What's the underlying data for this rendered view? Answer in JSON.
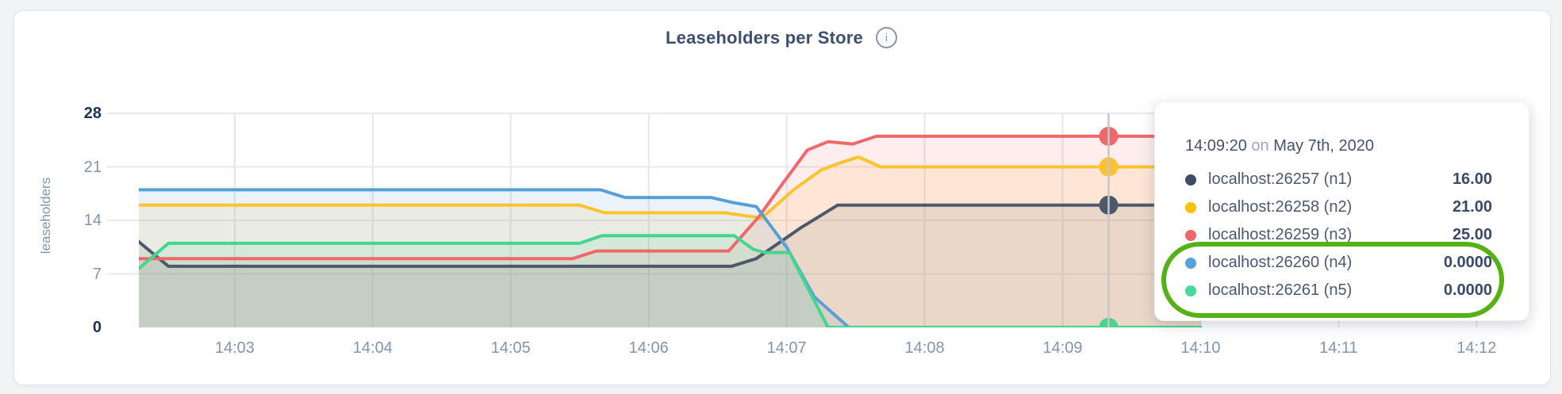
{
  "header": {
    "title": "Leaseholders per Store",
    "info_icon_glyph": "i"
  },
  "chart_data": {
    "type": "area",
    "title": "Leaseholders per Store",
    "xlabel": "",
    "ylabel": "leaseholders",
    "x_domain": [
      2.305,
      12.28
    ],
    "y_domain": [
      0,
      28
    ],
    "grid": true,
    "grid_color_vertical": "#e3e6ea",
    "grid_color_horizontal": "#e9e9ed",
    "x_ticks": [
      {
        "t": 3,
        "label": "14:03"
      },
      {
        "t": 4,
        "label": "14:04"
      },
      {
        "t": 5,
        "label": "14:05"
      },
      {
        "t": 6,
        "label": "14:06"
      },
      {
        "t": 7,
        "label": "14:07"
      },
      {
        "t": 8,
        "label": "14:08"
      },
      {
        "t": 9,
        "label": "14:09"
      },
      {
        "t": 10,
        "label": "14:10"
      },
      {
        "t": 11,
        "label": "14:11"
      },
      {
        "t": 12,
        "label": "14:12"
      }
    ],
    "y_ticks": [
      {
        "v": 0,
        "label": "0",
        "bold": true
      },
      {
        "v": 7,
        "label": "7",
        "bold": false
      },
      {
        "v": 14,
        "label": "14",
        "bold": false
      },
      {
        "v": 21,
        "label": "21",
        "bold": false
      },
      {
        "v": 28,
        "label": "28",
        "bold": true
      }
    ],
    "fill_opacity": 0.12,
    "series": [
      {
        "name": "localhost:26257 (n1)",
        "color": "#4e586b",
        "points": [
          [
            2.305,
            11.2
          ],
          [
            2.52,
            8
          ],
          [
            6.6,
            8
          ],
          [
            6.78,
            9
          ],
          [
            7.1,
            13
          ],
          [
            7.37,
            16
          ],
          [
            10,
            16
          ]
        ]
      },
      {
        "name": "localhost:26258 (n2)",
        "color": "#fcc32d",
        "points": [
          [
            2.305,
            16
          ],
          [
            5.5,
            16
          ],
          [
            5.68,
            15
          ],
          [
            6.55,
            15
          ],
          [
            6.82,
            14.3
          ],
          [
            7.05,
            18
          ],
          [
            7.25,
            20.6
          ],
          [
            7.4,
            21.6
          ],
          [
            7.52,
            22.3
          ],
          [
            7.68,
            21
          ],
          [
            10,
            21
          ]
        ]
      },
      {
        "name": "localhost:26259 (n3)",
        "color": "#ef696c",
        "points": [
          [
            2.305,
            9
          ],
          [
            5.45,
            9
          ],
          [
            5.62,
            10
          ],
          [
            6.58,
            10
          ],
          [
            6.8,
            14.5
          ],
          [
            6.95,
            18.3
          ],
          [
            7.15,
            23.2
          ],
          [
            7.3,
            24.3
          ],
          [
            7.48,
            24
          ],
          [
            7.65,
            25
          ],
          [
            10,
            25
          ]
        ]
      },
      {
        "name": "localhost:26260 (n4)",
        "color": "#56a0d8",
        "points": [
          [
            2.305,
            18
          ],
          [
            5.65,
            18
          ],
          [
            5.83,
            17
          ],
          [
            6.45,
            17
          ],
          [
            6.62,
            16.3
          ],
          [
            6.78,
            15.8
          ],
          [
            7.0,
            10.5
          ],
          [
            7.2,
            4
          ],
          [
            7.45,
            0
          ],
          [
            10,
            0
          ]
        ]
      },
      {
        "name": "localhost:26261 (n5)",
        "color": "#43d68e",
        "points": [
          [
            2.305,
            7.7
          ],
          [
            2.52,
            11
          ],
          [
            5.5,
            11
          ],
          [
            5.66,
            12
          ],
          [
            6.62,
            12
          ],
          [
            6.76,
            10.2
          ],
          [
            6.84,
            9.8
          ],
          [
            7.02,
            9.8
          ],
          [
            7.3,
            0
          ],
          [
            10,
            0
          ]
        ]
      }
    ],
    "crosshair": {
      "t": 9.3333,
      "line_color": "#c5c6c8",
      "dot_radius": 12,
      "dots": [
        {
          "series": 0,
          "value": 16
        },
        {
          "series": 1,
          "value": 21
        },
        {
          "series": 2,
          "value": 25
        },
        {
          "series": 3,
          "value": 0
        },
        {
          "series": 4,
          "value": 0
        }
      ]
    },
    "legend_position": "tooltip-right"
  },
  "tooltip": {
    "time": "14:09:20",
    "on_word": "on",
    "date": "May 7th, 2020",
    "rows": [
      {
        "label": "localhost:26257 (n1)",
        "value": "16.00",
        "dot_color": "#3f4c66"
      },
      {
        "label": "localhost:26258 (n2)",
        "value": "21.00",
        "dot_color": "#fcc10e"
      },
      {
        "label": "localhost:26259 (n3)",
        "value": "25.00",
        "dot_color": "#ee686b"
      },
      {
        "label": "localhost:26260 (n4)",
        "value": "0.0000",
        "dot_color": "#55a3da"
      },
      {
        "label": "localhost:26261 (n5)",
        "value": "0.0000",
        "dot_color": "#49d99d"
      }
    ],
    "highlight": {
      "start_row": 3,
      "end_row": 4,
      "color": "#54b215"
    }
  }
}
